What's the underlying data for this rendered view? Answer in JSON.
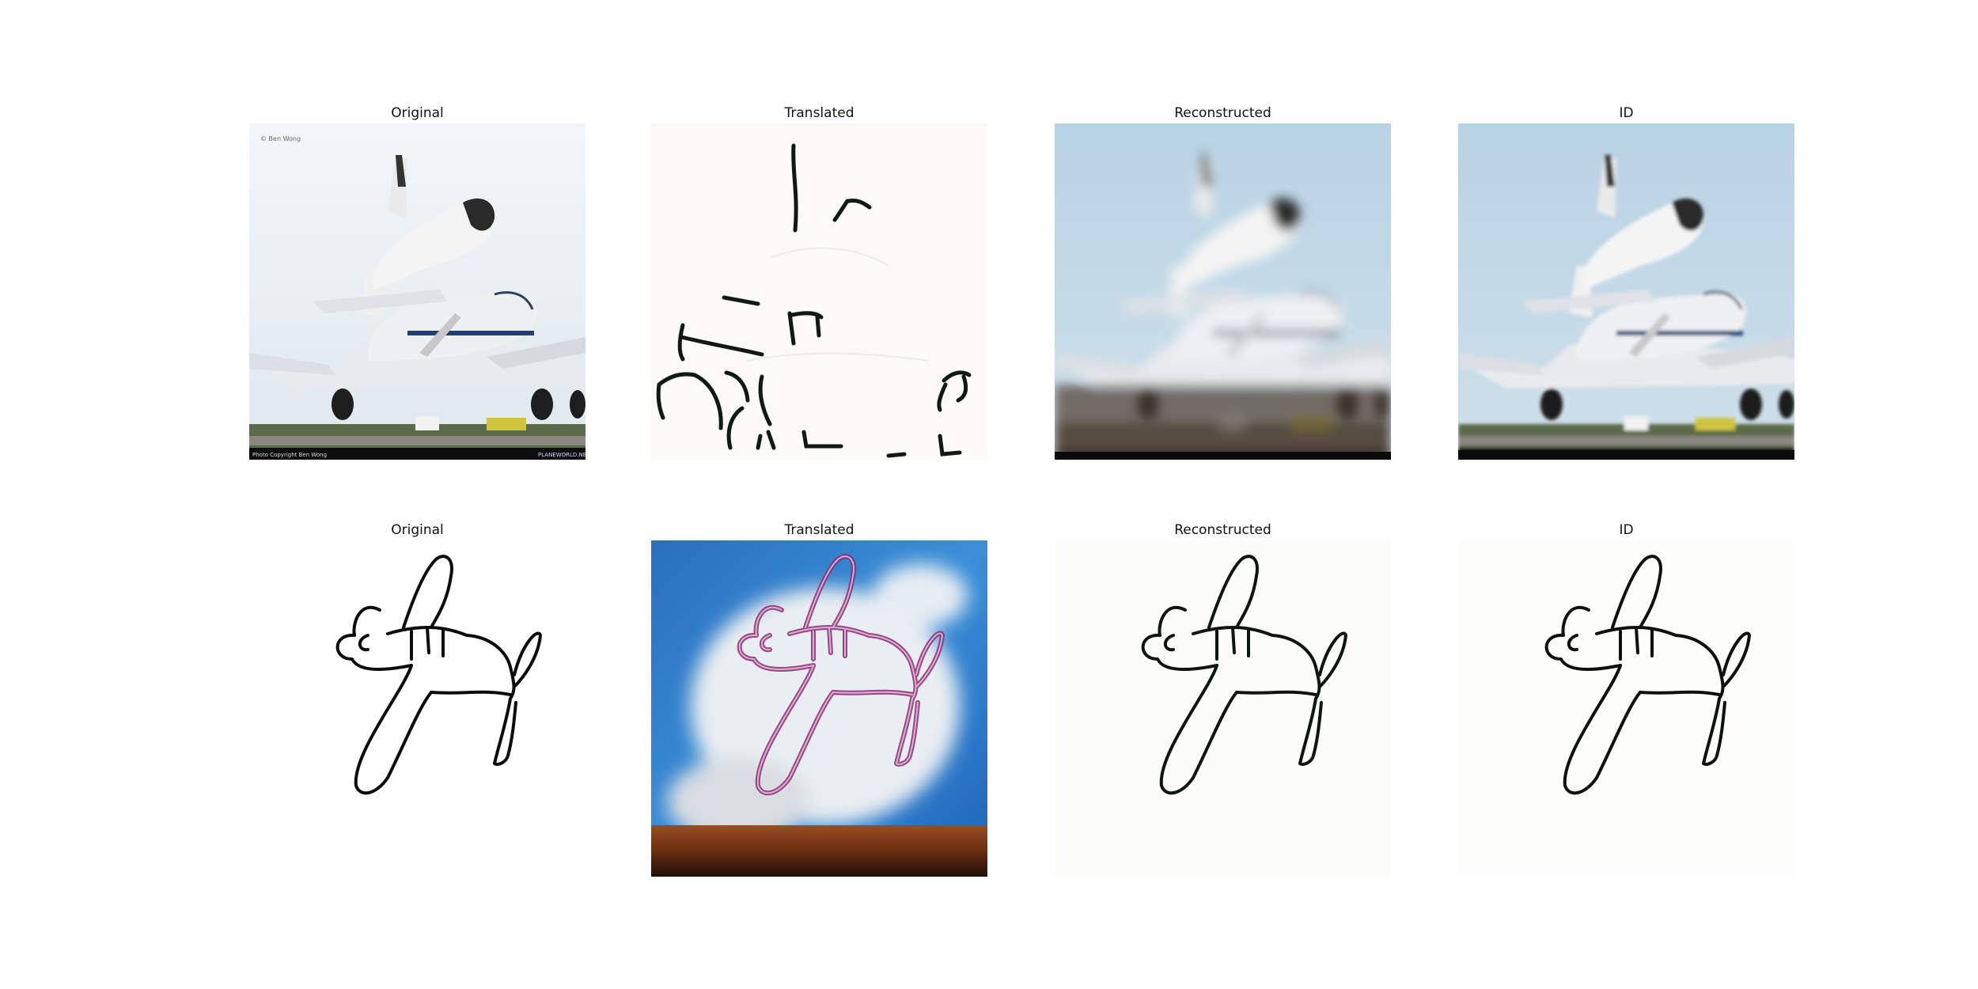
{
  "rows": [
    {
      "panels": [
        {
          "title": "Original"
        },
        {
          "title": "Translated"
        },
        {
          "title": "Reconstructed"
        },
        {
          "title": "ID"
        }
      ]
    },
    {
      "panels": [
        {
          "title": "Original"
        },
        {
          "title": "Translated"
        },
        {
          "title": "Reconstructed"
        },
        {
          "title": "ID"
        }
      ]
    }
  ],
  "watermarks": {
    "top_left": "© Ben Wong",
    "bottom_left": "Photo Copyright Ben Wong",
    "bottom_right": "PLANEWORLD.NET"
  }
}
